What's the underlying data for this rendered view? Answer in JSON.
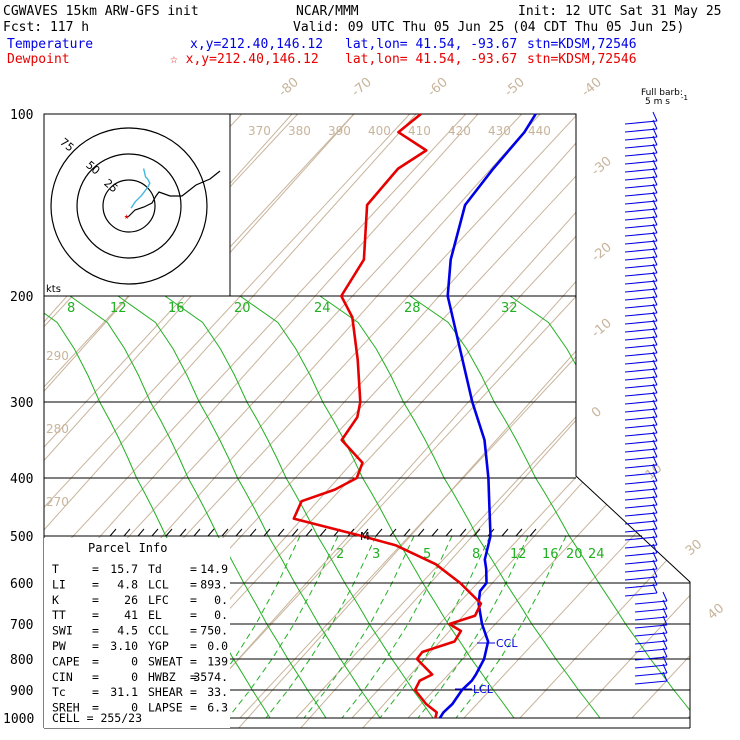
{
  "header": {
    "model": "CGWAVES 15km ARW-GFS init",
    "org": "NCAR/MMM",
    "init": "Init: 12 UTC Sat 31 May 25",
    "fcst": "Fcst:  117 h",
    "valid": "Valid: 09 UTC Thu 05 Jun 25 (04 CDT Thu 05 Jun 25)",
    "temp_label": "Temperature",
    "temp_loc": "x,y=212.40,146.12",
    "temp_latlon": "lat,lon= 41.54, -93.67",
    "temp_stn": "stn=KDSM,72546",
    "dew_label": "Dewpoint",
    "dew_loc": "☆ x,y=212.40,146.12",
    "dew_latlon": "lat,lon= 41.54, -93.67",
    "dew_stn": "stn=KDSM,72546",
    "barb_title": "Full barb:",
    "barb_units": "5 m s",
    "barb_exp": "-1"
  },
  "colors": {
    "temperature": "#0000e6",
    "dewpoint": "#e60000",
    "isotherm": "#c8b49b",
    "mixing_ratio": "#22b022",
    "grid": "#000000"
  },
  "hodograph": {
    "units": "kts",
    "ring_labels": [
      "25",
      "50",
      "75"
    ]
  },
  "parcel_info": {
    "title": "Parcel Info",
    "rows": [
      {
        "l1": "T",
        "v1": "15.7",
        "l2": "Td",
        "v2": "14.9"
      },
      {
        "l1": "LI",
        "v1": "4.8",
        "l2": "LCL",
        "v2": "893."
      },
      {
        "l1": "K",
        "v1": "26",
        "l2": "LFC",
        "v2": "0."
      },
      {
        "l1": "TT",
        "v1": "41",
        "l2": "EL",
        "v2": "0."
      },
      {
        "l1": "SWI",
        "v1": "4.5",
        "l2": "CCL",
        "v2": "750."
      },
      {
        "l1": "PW",
        "v1": "3.10",
        "l2": "YGP",
        "v2": "0.0"
      },
      {
        "l1": "CAPE",
        "v1": "0",
        "l2": "SWEAT",
        "v2": "139"
      },
      {
        "l1": "CIN",
        "v1": "0",
        "l2": "HWBZ",
        "v2": "3574."
      },
      {
        "l1": "Tc",
        "v1": "31.1",
        "l2": "SHEAR",
        "v2": "33."
      },
      {
        "l1": "SREH",
        "v1": "0",
        "l2": "LAPSE",
        "v2": "6.3"
      }
    ],
    "cell": "CELL = 255/23"
  },
  "chart_data": {
    "type": "line",
    "title": "",
    "ylabel": "",
    "xlabel": "",
    "pressure_levels": [
      100,
      200,
      300,
      400,
      500,
      600,
      700,
      800,
      900,
      1000
    ],
    "pressure_tick_labels": [
      "100",
      "200",
      "300",
      "400",
      "500",
      "600",
      "700",
      "800",
      "900",
      "1000"
    ],
    "temperature_tick_labels": [
      "-80",
      "-70",
      "-60",
      "-50",
      "-40",
      "-30",
      "-20",
      "-10",
      "0",
      "10",
      "20",
      "30",
      "40"
    ],
    "theta_labels": [
      "370",
      "380",
      "390",
      "400",
      "410",
      "420",
      "430",
      "440",
      "290",
      "280",
      "270"
    ],
    "mixing_ratio_labels_upper": [
      "8",
      "12",
      "16",
      "20",
      "24",
      "28",
      "32"
    ],
    "mixing_ratio_labels_lower": [
      "2",
      "3",
      "5",
      "8",
      "12",
      "16",
      "20",
      "24"
    ],
    "annotations": [
      "CCL",
      "LCL",
      "M"
    ],
    "series": [
      {
        "name": "Temperature",
        "color": "#0000e6",
        "pressure": [
          1000,
          980,
          950,
          900,
          870,
          850,
          800,
          750,
          700,
          650,
          620,
          600,
          570,
          550,
          500,
          450,
          400,
          350,
          300,
          250,
          200,
          180,
          150,
          130,
          110,
          100
        ],
        "temp_c": [
          15.7,
          15.4,
          15.6,
          15.0,
          15.2,
          14.9,
          13.8,
          11.6,
          7.6,
          3.6,
          1.8,
          1.6,
          -0.8,
          -2.6,
          -5.5,
          -10.5,
          -15.5,
          -22.5,
          -31.0,
          -42.0,
          -53.0,
          -58.5,
          -65.0,
          -66.0,
          -66.5,
          -67.5
        ]
      },
      {
        "name": "Dewpoint",
        "color": "#e60000",
        "pressure": [
          1000,
          980,
          950,
          900,
          870,
          850,
          800,
          780,
          750,
          720,
          700,
          680,
          650,
          600,
          560,
          520,
          500,
          470,
          440,
          420,
          400,
          380,
          350,
          320,
          300,
          260,
          220,
          200,
          180,
          150,
          130,
          120,
          110,
          100
        ],
        "temp_c": [
          14.9,
          14.2,
          10.9,
          6.6,
          5.9,
          7.1,
          1.8,
          1.6,
          5.6,
          5.0,
          1.8,
          5.0,
          4.0,
          -3.1,
          -10.6,
          -20.8,
          -28.5,
          -43.5,
          -45.0,
          -41.0,
          -39.0,
          -40.5,
          -48.0,
          -49.0,
          -51.0,
          -58.5,
          -66.5,
          -72.0,
          -74.0,
          -82.5,
          -83.0,
          -81.0,
          -89.0,
          -88.0
        ]
      }
    ],
    "hodograph_winds": {
      "name": "Hodograph",
      "u_kts": [
        1,
        3,
        6,
        9,
        10,
        9,
        8,
        7
      ],
      "v_kts": [
        -1,
        2,
        5,
        9,
        11,
        13,
        14,
        18
      ]
    },
    "grid": true
  }
}
